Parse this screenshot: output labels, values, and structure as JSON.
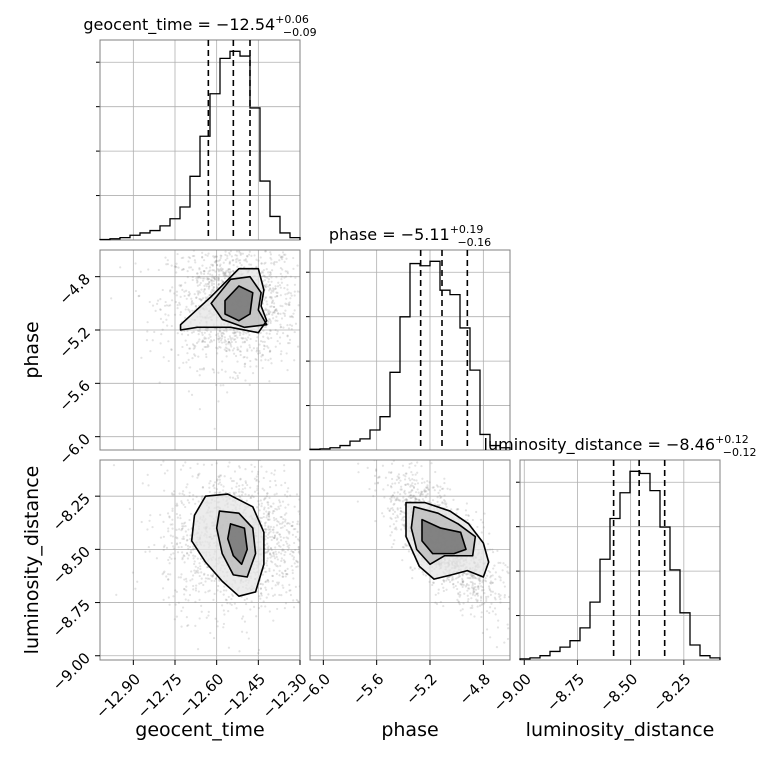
{
  "chart_data": {
    "type": "corner",
    "parameters": [
      "geocent_time",
      "phase",
      "luminosity_distance"
    ],
    "titles": [
      {
        "param": "geocent_time",
        "prefix": "geocent_time = ",
        "median": "−12.54",
        "plus": "+0.06",
        "minus": "−0.09"
      },
      {
        "param": "phase",
        "prefix": "phase = ",
        "median": "−5.11",
        "plus": "+0.19",
        "minus": "−0.16"
      },
      {
        "param": "luminosity_distance",
        "prefix": "luminosity_distance = ",
        "median": "−8.46",
        "plus": "+0.12",
        "minus": "−0.12"
      }
    ],
    "axes": {
      "geocent_time": {
        "range": [
          -13.02,
          -12.3
        ],
        "ticks": [
          -12.9,
          -12.75,
          -12.6,
          -12.45,
          -12.3
        ],
        "tick_labels": [
          "−12.90",
          "−12.75",
          "−12.60",
          "−12.45",
          "−12.30"
        ]
      },
      "phase": {
        "range": [
          -6.1,
          -4.6
        ],
        "ticks": [
          -6.0,
          -5.6,
          -5.2,
          -4.8
        ],
        "tick_labels": [
          "−6.0",
          "−5.6",
          "−5.2",
          "−4.8"
        ]
      },
      "luminosity_distance": {
        "range": [
          -9.02,
          -8.08
        ],
        "ticks": [
          -9.0,
          -8.75,
          -8.5,
          -8.25
        ],
        "tick_labels": [
          "−9.00",
          "−8.75",
          "−8.50",
          "−8.25"
        ]
      }
    },
    "histograms": {
      "geocent_time": {
        "edges": [
          -13.02,
          -12.984,
          -12.948,
          -12.912,
          -12.876,
          -12.84,
          -12.804,
          -12.768,
          -12.732,
          -12.696,
          -12.66,
          -12.624,
          -12.588,
          -12.552,
          -12.516,
          -12.48,
          -12.444,
          -12.408,
          -12.372,
          -12.336,
          -12.3
        ],
        "counts": [
          0.2,
          0.5,
          1,
          2,
          3,
          4,
          6,
          9,
          14,
          27,
          44,
          62,
          77,
          80,
          78,
          56,
          25,
          10,
          3,
          1
        ],
        "quantiles": [
          -12.63,
          -12.54,
          -12.48
        ]
      },
      "phase": {
        "edges": [
          -6.1,
          -6.025,
          -5.95,
          -5.875,
          -5.8,
          -5.725,
          -5.65,
          -5.575,
          -5.5,
          -5.425,
          -5.35,
          -5.275,
          -5.2,
          -5.125,
          -5.05,
          -4.975,
          -4.9,
          -4.825,
          -4.75,
          -4.675,
          -4.6
        ],
        "counts": [
          0.3,
          0.5,
          1,
          2,
          4,
          5,
          9,
          15,
          35,
          60,
          84,
          83,
          85,
          72,
          70,
          55,
          36,
          7,
          2,
          1
        ],
        "quantiles": [
          -5.27,
          -5.11,
          -4.92
        ]
      },
      "luminosity_distance": {
        "edges": [
          -9.02,
          -8.973,
          -8.926,
          -8.879,
          -8.832,
          -8.785,
          -8.738,
          -8.691,
          -8.644,
          -8.597,
          -8.55,
          -8.503,
          -8.456,
          -8.409,
          -8.362,
          -8.315,
          -8.268,
          -8.221,
          -8.174,
          -8.127,
          -8.08
        ],
        "counts": [
          0.5,
          1,
          2,
          4,
          6,
          9,
          15,
          27,
          47,
          66,
          78,
          88,
          87,
          79,
          62,
          42,
          22,
          7,
          2,
          1
        ],
        "quantiles": [
          -8.58,
          -8.46,
          -8.34
        ]
      }
    },
    "scatter_panels": [
      {
        "x": "geocent_time",
        "y": "phase",
        "center": [
          -12.54,
          -5.0
        ],
        "spread": [
          0.09,
          0.18
        ]
      },
      {
        "x": "geocent_time",
        "y": "luminosity_distance",
        "center": [
          -12.53,
          -8.46
        ],
        "spread": [
          0.1,
          0.13
        ]
      },
      {
        "x": "phase",
        "y": "luminosity_distance",
        "center": [
          -5.11,
          -8.46
        ],
        "spread": [
          0.16,
          0.12
        ]
      }
    ],
    "contours": [
      {
        "x": "geocent_time",
        "y": "phase",
        "levels": [
          [
            [
              -12.57,
              -4.98
            ],
            [
              -12.52,
              -4.87
            ],
            [
              -12.47,
              -4.92
            ],
            [
              -12.48,
              -5.08
            ],
            [
              -12.52,
              -5.13
            ],
            [
              -12.57,
              -5.08
            ]
          ],
          [
            [
              -12.62,
              -5.0
            ],
            [
              -12.55,
              -4.82
            ],
            [
              -12.48,
              -4.8
            ],
            [
              -12.44,
              -4.92
            ],
            [
              -12.45,
              -5.05
            ],
            [
              -12.42,
              -5.16
            ],
            [
              -12.5,
              -5.18
            ],
            [
              -12.58,
              -5.12
            ]
          ],
          [
            [
              -12.73,
              -5.16
            ],
            [
              -12.62,
              -4.95
            ],
            [
              -12.52,
              -4.74
            ],
            [
              -12.45,
              -4.74
            ],
            [
              -12.43,
              -4.9
            ],
            [
              -12.44,
              -5.02
            ],
            [
              -12.42,
              -5.13
            ],
            [
              -12.45,
              -5.22
            ],
            [
              -12.55,
              -5.18
            ],
            [
              -12.67,
              -5.18
            ],
            [
              -12.73,
              -5.2
            ]
          ]
        ]
      },
      {
        "x": "geocent_time",
        "y": "luminosity_distance",
        "levels": [
          [
            [
              -12.55,
              -8.38
            ],
            [
              -12.5,
              -8.4
            ],
            [
              -12.49,
              -8.5
            ],
            [
              -12.51,
              -8.57
            ],
            [
              -12.54,
              -8.53
            ],
            [
              -12.56,
              -8.45
            ]
          ],
          [
            [
              -12.59,
              -8.32
            ],
            [
              -12.52,
              -8.33
            ],
            [
              -12.47,
              -8.4
            ],
            [
              -12.46,
              -8.52
            ],
            [
              -12.49,
              -8.63
            ],
            [
              -12.54,
              -8.62
            ],
            [
              -12.58,
              -8.52
            ],
            [
              -12.6,
              -8.4
            ]
          ],
          [
            [
              -12.64,
              -8.25
            ],
            [
              -12.56,
              -8.24
            ],
            [
              -12.47,
              -8.3
            ],
            [
              -12.43,
              -8.42
            ],
            [
              -12.43,
              -8.57
            ],
            [
              -12.46,
              -8.7
            ],
            [
              -12.52,
              -8.72
            ],
            [
              -12.58,
              -8.65
            ],
            [
              -12.64,
              -8.56
            ],
            [
              -12.69,
              -8.46
            ],
            [
              -12.68,
              -8.34
            ]
          ]
        ]
      },
      {
        "x": "phase",
        "y": "luminosity_distance",
        "levels": [
          [
            [
              -5.26,
              -8.36
            ],
            [
              -5.12,
              -8.4
            ],
            [
              -4.97,
              -8.42
            ],
            [
              -4.93,
              -8.5
            ],
            [
              -5.02,
              -8.52
            ],
            [
              -5.18,
              -8.52
            ],
            [
              -5.26,
              -8.46
            ]
          ],
          [
            [
              -5.32,
              -8.3
            ],
            [
              -5.14,
              -8.33
            ],
            [
              -4.99,
              -8.38
            ],
            [
              -4.86,
              -8.44
            ],
            [
              -4.88,
              -8.53
            ],
            [
              -4.98,
              -8.53
            ],
            [
              -5.09,
              -8.53
            ],
            [
              -5.2,
              -8.57
            ],
            [
              -5.3,
              -8.5
            ],
            [
              -5.34,
              -8.4
            ]
          ],
          [
            [
              -5.38,
              -8.28
            ],
            [
              -5.24,
              -8.28
            ],
            [
              -5.05,
              -8.32
            ],
            [
              -4.91,
              -8.38
            ],
            [
              -4.8,
              -8.47
            ],
            [
              -4.76,
              -8.56
            ],
            [
              -4.8,
              -8.63
            ],
            [
              -4.92,
              -8.6
            ],
            [
              -5.04,
              -8.62
            ],
            [
              -5.17,
              -8.64
            ],
            [
              -5.28,
              -8.58
            ],
            [
              -5.38,
              -8.44
            ]
          ]
        ]
      }
    ],
    "grid": true,
    "colors": {
      "hist_line": "#000000",
      "points": "#808080",
      "grid": "#b0b0b0",
      "spine": "#808080"
    }
  }
}
